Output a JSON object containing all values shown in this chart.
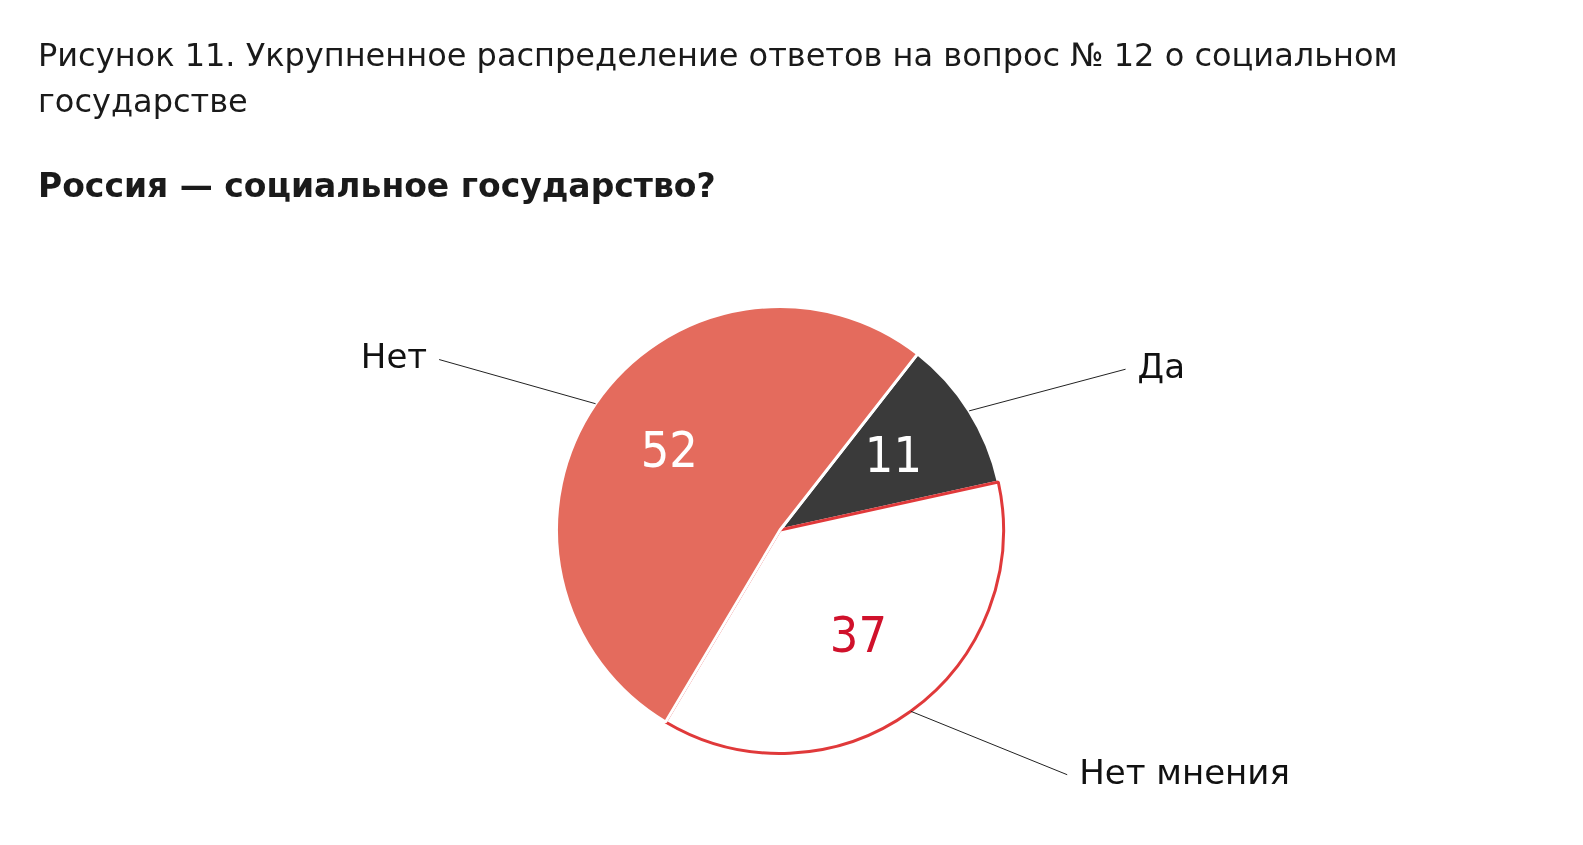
{
  "chart_data": {
    "type": "pie",
    "title": "Рисунок 11. Укрупненное распределение ответов на вопрос № 12 о социальном государстве",
    "subtitle": "Россия — социальное государство?",
    "categories": [
      "Да",
      "Нет мнения",
      "Нет"
    ],
    "values": [
      11,
      37,
      52
    ],
    "colors": [
      "#3a3a3a",
      "#ffffff",
      "#e46b5d"
    ],
    "data_labels": true,
    "legend": false
  }
}
